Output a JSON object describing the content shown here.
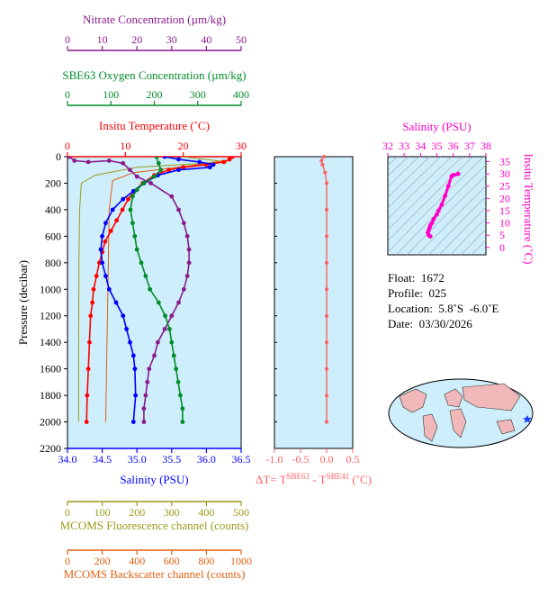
{
  "colors": {
    "nitrate": "#8b1a8b",
    "oxygen": "#008c2a",
    "temperature": "#ff0000",
    "salinity": "#0000ff",
    "fluorescence": "#9a9a1a",
    "backscatter": "#e06010",
    "delta": "#ff6060",
    "ts": "#ff00c8",
    "panel_bg": "#cdeefa"
  },
  "axis_labels": {
    "nitrate": "Nitrate Concentration (µm/kg)",
    "oxygen": "SBE63 Oxygen Concentration (µm/kg)",
    "temperature": "Insitu Temperature (˚C)",
    "salinity": "Salinity (PSU)",
    "pressure": "Pressure (decibar)",
    "fluorescence": "MCOMS Fluorescence channel (counts)",
    "backscatter": "MCOMS Backscatter channel (counts)",
    "delta": "ΔT= T",
    "delta_sup1": "SBE63",
    "delta_mid": " - T",
    "delta_sup2": "SBE41",
    "delta_unit": " (˚C)",
    "ts_salinity": "Salinity (PSU)",
    "ts_temperature": "Insitu Temperature (˚C)"
  },
  "info": {
    "float": "Float:  1672",
    "profile": "Profile:  025",
    "location": "Location:  5.8˚S  -6.0˚E",
    "date": "Date:  03/30/2026"
  },
  "chart_data": [
    {
      "type": "line",
      "panel": "profiles",
      "pressure_axis": {
        "range": [
          2200,
          0
        ],
        "ticks": [
          0,
          200,
          400,
          600,
          800,
          1000,
          1200,
          1400,
          1600,
          1800,
          2000,
          2200
        ]
      },
      "axes": {
        "nitrate": {
          "range": [
            0,
            50
          ],
          "ticks": [
            0,
            10,
            20,
            30,
            40,
            50
          ]
        },
        "oxygen": {
          "range": [
            0,
            400
          ],
          "ticks": [
            0,
            100,
            200,
            300,
            400
          ]
        },
        "temperature": {
          "range": [
            0,
            30
          ],
          "ticks": [
            0,
            10,
            20,
            30
          ]
        },
        "salinity": {
          "range": [
            34.0,
            36.5
          ],
          "ticks": [
            "34.0",
            "34.5",
            "35.0",
            "35.5",
            "36.0",
            "36.5"
          ]
        },
        "fluorescence": {
          "range": [
            0,
            500
          ],
          "ticks": [
            0,
            100,
            200,
            300,
            400,
            500
          ]
        },
        "backscatter": {
          "range": [
            0,
            1000
          ],
          "ticks": [
            0,
            200,
            400,
            600,
            800,
            1000
          ]
        }
      },
      "series": [
        {
          "key": "temperature",
          "markers": true,
          "points": [
            [
              28.5,
              0
            ],
            [
              28,
              20
            ],
            [
              27,
              40
            ],
            [
              24,
              60
            ],
            [
              20,
              80
            ],
            [
              17.5,
              100
            ],
            [
              15,
              140
            ],
            [
              13,
              200
            ],
            [
              11.5,
              260
            ],
            [
              10.5,
              320
            ],
            [
              9.5,
              400
            ],
            [
              8.5,
              480
            ],
            [
              7.5,
              560
            ],
            [
              6.5,
              640
            ],
            [
              6,
              720
            ],
            [
              5.5,
              800
            ],
            [
              5,
              900
            ],
            [
              4.5,
              1000
            ],
            [
              4.3,
              1100
            ],
            [
              4,
              1200
            ],
            [
              3.8,
              1400
            ],
            [
              3.6,
              1600
            ],
            [
              3.4,
              1800
            ],
            [
              3.3,
              2000
            ]
          ]
        },
        {
          "key": "salinity",
          "markers": true,
          "points": [
            [
              35.4,
              0
            ],
            [
              35.6,
              20
            ],
            [
              35.9,
              40
            ],
            [
              36.1,
              60
            ],
            [
              36.05,
              80
            ],
            [
              35.6,
              100
            ],
            [
              35.3,
              140
            ],
            [
              35.1,
              200
            ],
            [
              34.95,
              260
            ],
            [
              34.8,
              320
            ],
            [
              34.65,
              400
            ],
            [
              34.55,
              500
            ],
            [
              34.5,
              600
            ],
            [
              34.48,
              700
            ],
            [
              34.5,
              800
            ],
            [
              34.55,
              900
            ],
            [
              34.6,
              1000
            ],
            [
              34.7,
              1100
            ],
            [
              34.8,
              1200
            ],
            [
              34.85,
              1300
            ],
            [
              34.9,
              1400
            ],
            [
              34.95,
              1500
            ],
            [
              34.97,
              1600
            ],
            [
              34.98,
              1800
            ],
            [
              34.95,
              2000
            ]
          ]
        },
        {
          "key": "nitrate",
          "markers": true,
          "points": [
            [
              0.5,
              0
            ],
            [
              2,
              30
            ],
            [
              6,
              40
            ],
            [
              12,
              30
            ],
            [
              16,
              50
            ],
            [
              18,
              100
            ],
            [
              20,
              150
            ],
            [
              24,
              200
            ],
            [
              30,
              300
            ],
            [
              32,
              400
            ],
            [
              33.5,
              500
            ],
            [
              34.5,
              600
            ],
            [
              35,
              700
            ],
            [
              35,
              800
            ],
            [
              34.5,
              900
            ],
            [
              33.5,
              1000
            ],
            [
              32,
              1100
            ],
            [
              30,
              1200
            ],
            [
              28,
              1300
            ],
            [
              26,
              1400
            ],
            [
              25,
              1500
            ],
            [
              23.5,
              1600
            ],
            [
              23,
              1700
            ],
            [
              22.5,
              1800
            ],
            [
              22,
              1900
            ],
            [
              22,
              2000
            ]
          ]
        },
        {
          "key": "oxygen",
          "markers": true,
          "points": [
            [
              205,
              0
            ],
            [
              210,
              50
            ],
            [
              215,
              100
            ],
            [
              200,
              150
            ],
            [
              175,
              200
            ],
            [
              160,
              250
            ],
            [
              150,
              300
            ],
            [
              145,
              400
            ],
            [
              150,
              500
            ],
            [
              155,
              600
            ],
            [
              160,
              700
            ],
            [
              170,
              800
            ],
            [
              180,
              900
            ],
            [
              190,
              1000
            ],
            [
              210,
              1100
            ],
            [
              225,
              1200
            ],
            [
              235,
              1300
            ],
            [
              240,
              1400
            ],
            [
              245,
              1500
            ],
            [
              250,
              1600
            ],
            [
              255,
              1700
            ],
            [
              260,
              1800
            ],
            [
              265,
              1900
            ],
            [
              265,
              2000
            ]
          ]
        },
        {
          "key": "fluorescence",
          "markers": false,
          "points": [
            [
              330,
              0
            ],
            [
              460,
              40
            ],
            [
              200,
              80
            ],
            [
              80,
              140
            ],
            [
              40,
              200
            ],
            [
              35,
              400
            ],
            [
              33,
              800
            ],
            [
              32,
              1400
            ],
            [
              32,
              2000
            ]
          ]
        },
        {
          "key": "backscatter",
          "markers": false,
          "points": [
            [
              900,
              30
            ],
            [
              700,
              70
            ],
            [
              380,
              120
            ],
            [
              260,
              180
            ],
            [
              240,
              400
            ],
            [
              235,
              800
            ],
            [
              230,
              1200
            ],
            [
              225,
              1600
            ],
            [
              220,
              2000
            ]
          ]
        }
      ]
    },
    {
      "type": "line",
      "panel": "delta",
      "x_axis": {
        "range": [
          -1.0,
          0.5
        ],
        "ticks": [
          "-1.0",
          "-0.5",
          "0.0",
          "0.5"
        ]
      },
      "series": [
        {
          "key": "delta",
          "markers": true,
          "points": [
            [
              -0.05,
              0
            ],
            [
              -0.1,
              30
            ],
            [
              -0.08,
              60
            ],
            [
              -0.03,
              120
            ],
            [
              0,
              200
            ],
            [
              0,
              400
            ],
            [
              0,
              600
            ],
            [
              0,
              800
            ],
            [
              0,
              1000
            ],
            [
              0,
              1200
            ],
            [
              0,
              1400
            ],
            [
              0,
              1600
            ],
            [
              0,
              1800
            ],
            [
              0,
              2000
            ]
          ]
        }
      ]
    },
    {
      "type": "scatter",
      "panel": "ts",
      "x_axis": {
        "range": [
          32,
          38
        ],
        "ticks": [
          32,
          33,
          34,
          35,
          36,
          37,
          38
        ]
      },
      "y_axis": {
        "range": [
          -3,
          37
        ],
        "ticks": [
          0,
          5,
          10,
          15,
          20,
          25,
          30,
          35
        ]
      },
      "series": [
        {
          "key": "ts",
          "points": [
            [
              36.0,
              29.5
            ],
            [
              36.3,
              30
            ],
            [
              35.9,
              29
            ],
            [
              35.7,
              25
            ],
            [
              35.5,
              21
            ],
            [
              35.3,
              17.5
            ],
            [
              35.1,
              15
            ],
            [
              35.0,
              13.5
            ],
            [
              34.8,
              11.5
            ],
            [
              34.7,
              10
            ],
            [
              34.6,
              9
            ],
            [
              34.55,
              8
            ],
            [
              34.5,
              7
            ],
            [
              34.45,
              6
            ],
            [
              34.5,
              5
            ],
            [
              34.6,
              4.5
            ]
          ]
        }
      ]
    }
  ]
}
